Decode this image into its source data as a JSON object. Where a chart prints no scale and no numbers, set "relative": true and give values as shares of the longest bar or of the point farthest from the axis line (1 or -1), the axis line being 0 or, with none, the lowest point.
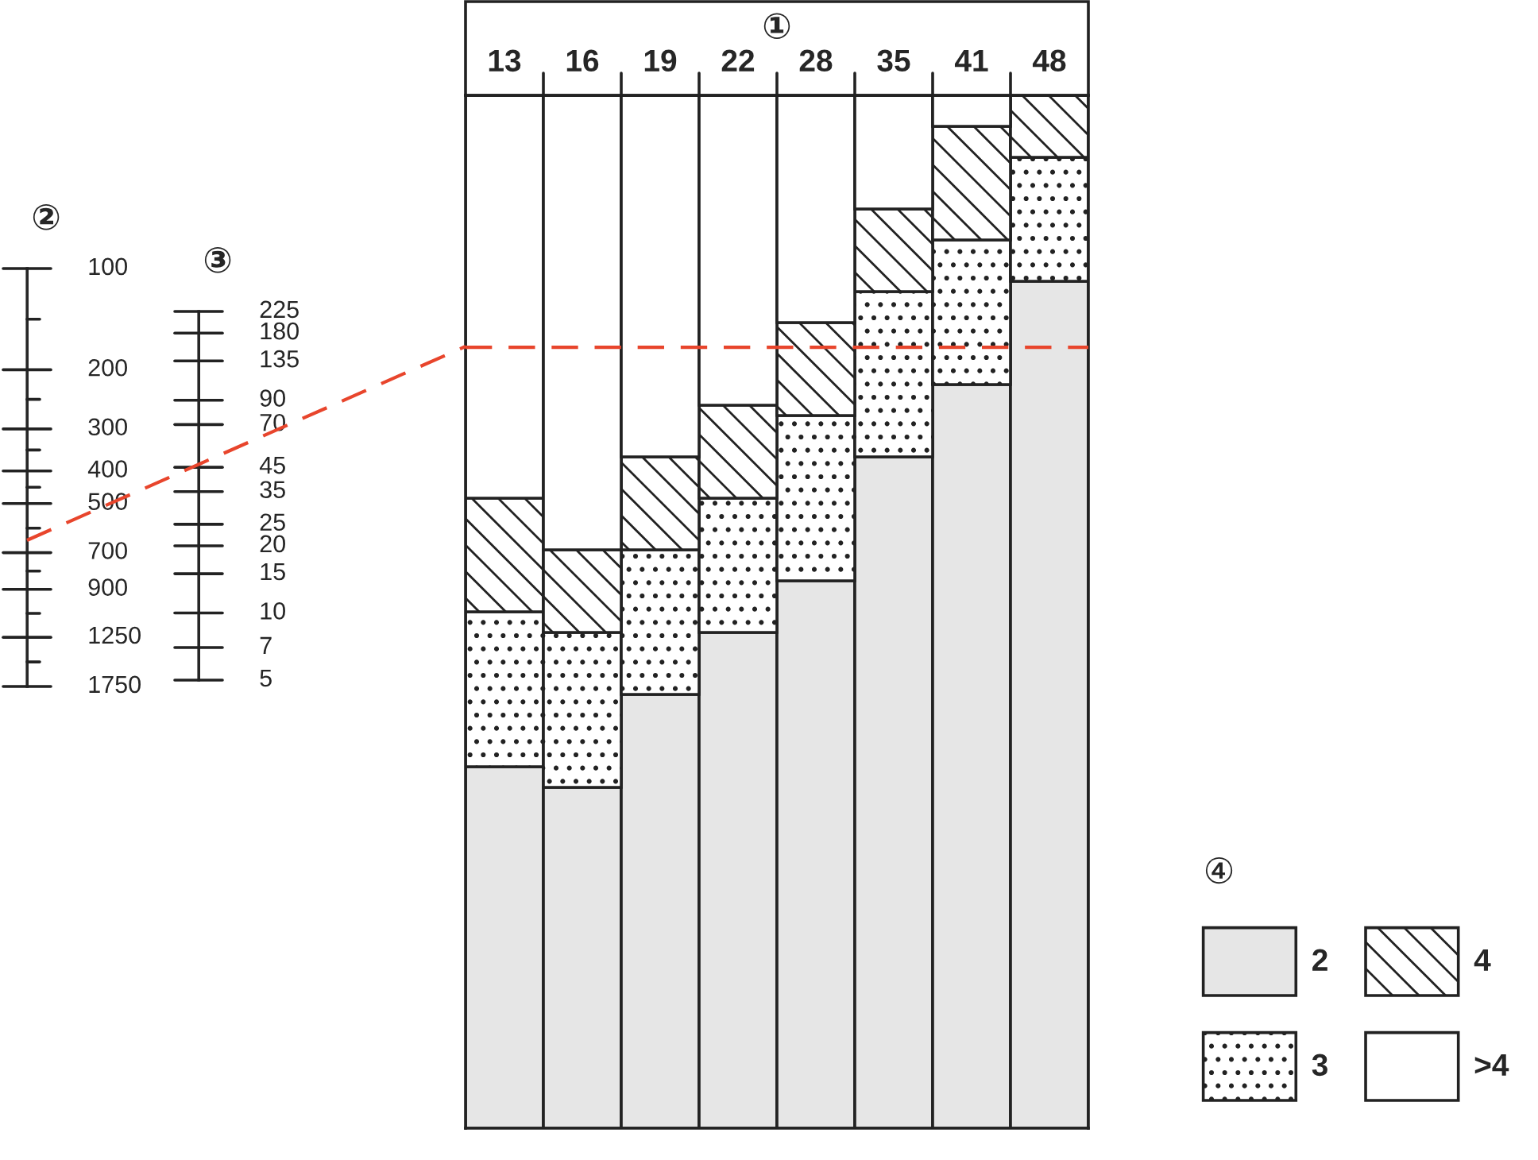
{
  "chart_data": [
    {
      "type": "other",
      "title": "②",
      "annotations": [
        "100",
        "200",
        "300",
        "400",
        "500",
        "700",
        "900",
        "1250",
        "1750"
      ]
    },
    {
      "type": "other",
      "title": "③",
      "annotations": [
        "225",
        "180",
        "135",
        "90",
        "70",
        "45",
        "35",
        "25",
        "20",
        "15",
        "10",
        "7",
        "5"
      ]
    },
    {
      "type": "bar",
      "title": "①",
      "stacked": true,
      "relative": true,
      "legend_title": "④",
      "legend": "bottom right",
      "categories": [
        "13",
        "16",
        "19",
        "22",
        "28",
        "35",
        "41",
        "48"
      ],
      "series": [
        {
          "name": "2",
          "color": "#e6e6e6",
          "values": [
            0.35,
            0.33,
            0.42,
            0.48,
            0.53,
            0.65,
            0.72,
            0.82
          ]
        },
        {
          "name": "3",
          "color": "#222222",
          "values": [
            0.15,
            0.15,
            0.14,
            0.13,
            0.16,
            0.16,
            0.14,
            0.12
          ]
        },
        {
          "name": "4",
          "color": "#222222",
          "values": [
            0.11,
            0.08,
            0.09,
            0.09,
            0.09,
            0.08,
            0.11,
            0.06
          ]
        },
        {
          "name": ">4",
          "color": "#ffffff",
          "values": [
            0.39,
            0.44,
            0.35,
            0.3,
            0.22,
            0.11,
            0.03,
            null
          ]
        }
      ],
      "ref_lines": [
        {
          "axis": "y",
          "value": 0.756,
          "color": "#e8452c",
          "line_style": "dashed"
        }
      ]
    }
  ]
}
